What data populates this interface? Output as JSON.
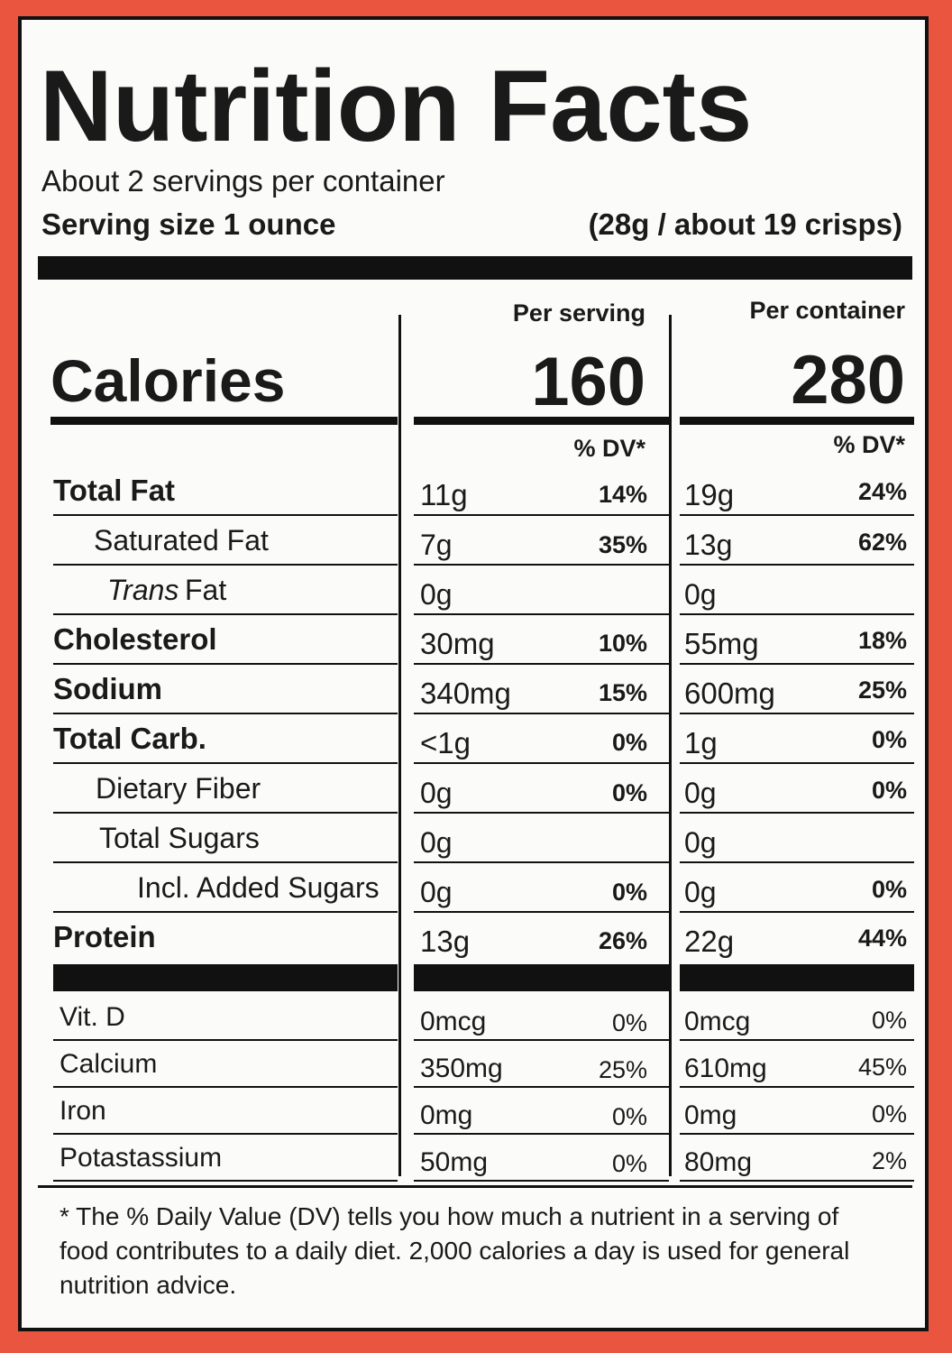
{
  "title": "Nutrition Facts",
  "servings": "About 2 servings per container",
  "serving_size": {
    "label": "Serving size 1 ounce",
    "amount": "(28g / about 19 crisps)"
  },
  "columns": [
    "Per serving",
    "Per container"
  ],
  "calories": {
    "label": "Calories",
    "values": [
      "160",
      "280"
    ]
  },
  "dv_headers": [
    "% DV*",
    "% DV*"
  ],
  "nutrients": [
    {
      "name": "Total Fat",
      "serving": [
        "11g",
        "14%"
      ],
      "container": [
        "19g",
        "24%"
      ]
    },
    {
      "name": "Saturated Fat",
      "serving": [
        "7g",
        "35%"
      ],
      "container": [
        "13g",
        "62%"
      ]
    },
    {
      "name_italic": "Trans",
      "name": "Fat",
      "serving": [
        "0g",
        null
      ],
      "container": [
        "0g",
        null
      ]
    },
    {
      "name": "Cholesterol",
      "serving": [
        "30mg",
        "10%"
      ],
      "container": [
        "55mg",
        "18%"
      ]
    },
    {
      "name": "Sodium",
      "serving": [
        "340mg",
        "15%"
      ],
      "container": [
        "600mg",
        "25%"
      ]
    },
    {
      "name": "Total Carb.",
      "serving": [
        "<1g",
        "0%"
      ],
      "container": [
        "1g",
        "0%"
      ]
    },
    {
      "name": "Dietary Fiber",
      "serving": [
        "0g",
        "0%"
      ],
      "container": [
        "0g",
        "0%"
      ]
    },
    {
      "name": "Total Sugars",
      "serving": [
        "0g",
        null
      ],
      "container": [
        "0g",
        null
      ]
    },
    {
      "name": "Incl. Added Sugars",
      "serving": [
        "0g",
        "0%"
      ],
      "container": [
        "0g",
        "0%"
      ]
    },
    {
      "name": "Protein",
      "serving": [
        "13g",
        "26%"
      ],
      "container": [
        "22g",
        "44%"
      ]
    }
  ],
  "vitamins": [
    {
      "name": "Vit. D",
      "serving": [
        "0mcg",
        "0%"
      ],
      "container": [
        "0mcg",
        "0%"
      ]
    },
    {
      "name": "Calcium",
      "serving": [
        "350mg",
        "25%"
      ],
      "container": [
        "610mg",
        "45%"
      ]
    },
    {
      "name": "Iron",
      "serving": [
        "0mg",
        "0%"
      ],
      "container": [
        "0mg",
        "0%"
      ]
    },
    {
      "name": "Potastassium",
      "serving": [
        "50mg",
        "0%"
      ],
      "container": [
        "80mg",
        "2%"
      ]
    }
  ],
  "footnote": "* The % Daily Value (DV) tells you how much a nutrient in a serving of food contributes to a daily diet. 2,000 calories a day is used for general nutrition advice."
}
